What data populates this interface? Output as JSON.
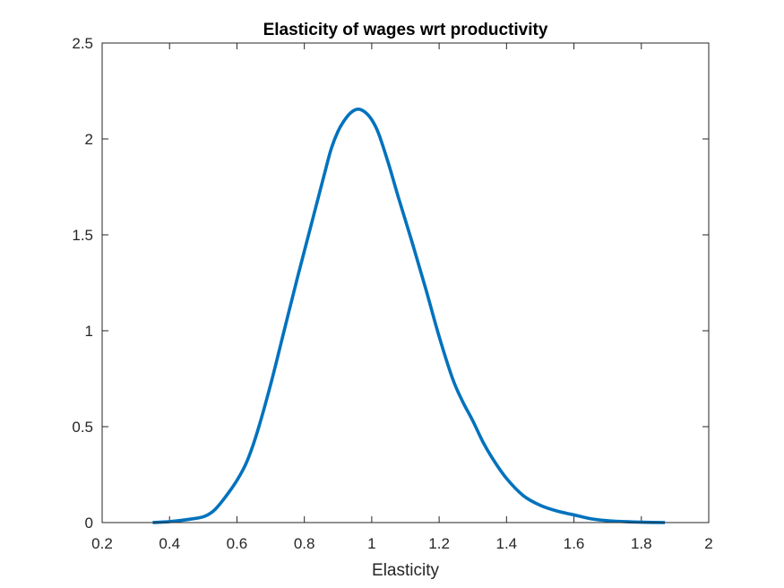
{
  "chart_data": {
    "type": "line",
    "title": "Elasticity of wages wrt productivity",
    "xlabel": "Elasticity",
    "ylabel": "",
    "xlim": [
      0.2,
      2
    ],
    "ylim": [
      0,
      2.5
    ],
    "x_ticks": [
      "0.2",
      "0.4",
      "0.6",
      "0.8",
      "1",
      "1.2",
      "1.4",
      "1.6",
      "1.8",
      "2"
    ],
    "y_ticks": [
      "0",
      "0.5",
      "1",
      "1.5",
      "2",
      "2.5"
    ],
    "grid": false,
    "legend": "none",
    "line_color": "#0072BD",
    "series": [
      {
        "x": [
          0.35,
          0.4,
          0.45,
          0.5,
          0.53,
          0.56,
          0.6,
          0.63,
          0.66,
          0.7,
          0.74,
          0.78,
          0.82,
          0.86,
          0.88,
          0.9,
          0.92,
          0.94,
          0.96,
          0.98,
          1.0,
          1.02,
          1.05,
          1.08,
          1.12,
          1.16,
          1.2,
          1.24,
          1.27,
          1.3,
          1.33,
          1.36,
          1.4,
          1.45,
          1.5,
          1.55,
          1.6,
          1.65,
          1.7,
          1.75,
          1.8,
          1.87
        ],
        "y": [
          0.0,
          0.005,
          0.015,
          0.03,
          0.06,
          0.12,
          0.22,
          0.32,
          0.47,
          0.72,
          1.0,
          1.28,
          1.55,
          1.82,
          1.95,
          2.04,
          2.1,
          2.14,
          2.155,
          2.14,
          2.1,
          2.03,
          1.87,
          1.69,
          1.46,
          1.22,
          0.97,
          0.75,
          0.63,
          0.53,
          0.42,
          0.33,
          0.23,
          0.14,
          0.09,
          0.06,
          0.04,
          0.02,
          0.01,
          0.005,
          0.002,
          0.0
        ]
      }
    ]
  }
}
